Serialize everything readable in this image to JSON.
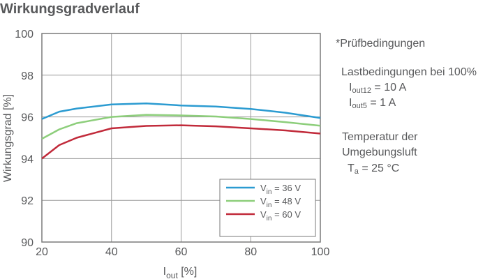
{
  "chart_data": {
    "type": "line",
    "title": "Wirkungsgradverlauf",
    "xlabel": {
      "main": "I",
      "sub": "out",
      "rest": " [%]"
    },
    "ylabel": "Wirkungsgrad [%]",
    "xlim": [
      20,
      100
    ],
    "ylim": [
      90,
      100
    ],
    "xticks": [
      "20",
      "40",
      "60",
      "80",
      "100"
    ],
    "yticks": [
      "90",
      "92",
      "94",
      "96",
      "98",
      "100"
    ],
    "grid": true,
    "legend_position": "bottom-right",
    "x": [
      20,
      25,
      30,
      40,
      50,
      60,
      70,
      80,
      90,
      100
    ],
    "series": [
      {
        "name": {
          "main": "V",
          "sub": "in",
          "rest": " = 36 V"
        },
        "color": "#2b9bd1",
        "values": [
          95.9,
          96.25,
          96.4,
          96.6,
          96.65,
          96.55,
          96.5,
          96.38,
          96.2,
          95.95
        ]
      },
      {
        "name": {
          "main": "V",
          "sub": "in",
          "rest": " = 48 V"
        },
        "color": "#8dce7b",
        "values": [
          94.95,
          95.4,
          95.7,
          96.0,
          96.1,
          96.07,
          96.02,
          95.9,
          95.75,
          95.58
        ]
      },
      {
        "name": {
          "main": "V",
          "sub": "in",
          "rest": " = 60 V"
        },
        "color": "#c12a3a",
        "values": [
          94.0,
          94.65,
          95.0,
          95.45,
          95.57,
          95.6,
          95.55,
          95.45,
          95.35,
          95.2
        ]
      }
    ]
  },
  "notes": {
    "heading": "*Prüfbedingungen",
    "load_title": "Lastbedingungen bei 100%",
    "iout12": {
      "main": "I",
      "sub": "out12",
      "rest": " = 10 A"
    },
    "iout5": {
      "main": "I",
      "sub": "out5",
      "rest": " = 1 A"
    },
    "temp_line1": "Temperatur der",
    "temp_line2": "Umgebungsluft",
    "ta": {
      "main": "T",
      "sub": "a",
      "rest": " = 25 °C"
    }
  }
}
